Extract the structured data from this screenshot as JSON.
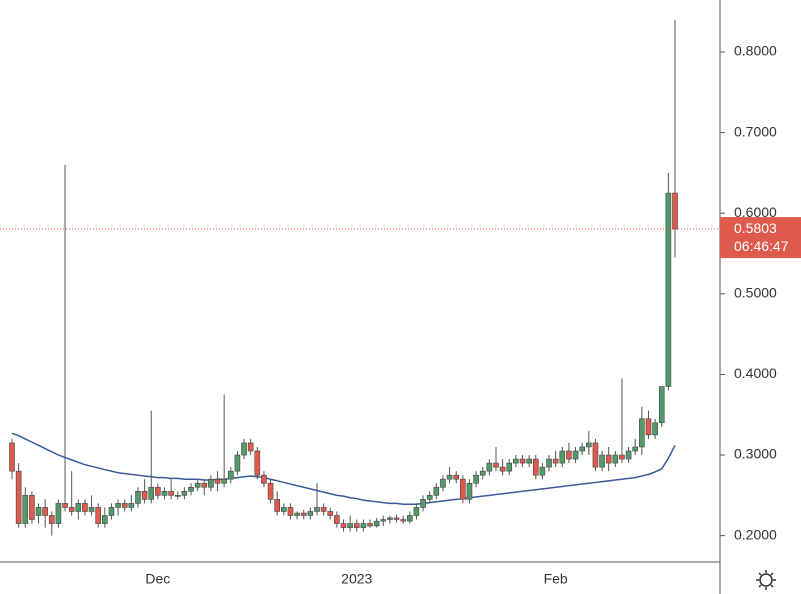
{
  "chart_data": {
    "type": "candlestick",
    "ylim": [
      0.1673,
      0.8645
    ],
    "yticks": [
      {
        "value": 0.2,
        "label": "0.2000"
      },
      {
        "value": 0.3,
        "label": "0.3000"
      },
      {
        "value": 0.4,
        "label": "0.4000"
      },
      {
        "value": 0.5,
        "label": "0.5000"
      },
      {
        "value": 0.6,
        "label": "0.6000"
      },
      {
        "value": 0.7,
        "label": "0.7000"
      },
      {
        "value": 0.8,
        "label": "0.8000"
      }
    ],
    "up_color": "#53996a",
    "down_color": "#de5a4c",
    "categories": [
      null,
      null,
      null,
      null,
      null,
      null,
      null,
      null,
      null,
      null,
      null,
      null,
      null,
      null,
      null,
      null,
      null,
      null,
      null,
      null,
      null,
      null,
      "Dec",
      null,
      null,
      null,
      null,
      null,
      null,
      null,
      null,
      null,
      null,
      null,
      null,
      null,
      null,
      null,
      null,
      null,
      null,
      null,
      null,
      null,
      null,
      null,
      null,
      null,
      null,
      null,
      null,
      null,
      "2023",
      null,
      null,
      null,
      null,
      null,
      null,
      null,
      null,
      null,
      null,
      null,
      null,
      null,
      null,
      null,
      null,
      null,
      null,
      null,
      null,
      null,
      null,
      null,
      null,
      null,
      null,
      null,
      null,
      null,
      "Feb",
      null,
      null,
      null,
      null,
      null,
      null,
      null,
      null,
      null,
      null,
      null,
      null,
      null,
      null,
      null,
      null,
      null,
      null
    ],
    "candles": [
      [
        0.315,
        0.32,
        0.27,
        0.28
      ],
      [
        0.28,
        0.29,
        0.21,
        0.215
      ],
      [
        0.215,
        0.26,
        0.21,
        0.25
      ],
      [
        0.25,
        0.255,
        0.215,
        0.22
      ],
      [
        0.225,
        0.24,
        0.215,
        0.235
      ],
      [
        0.235,
        0.245,
        0.21,
        0.225
      ],
      [
        0.225,
        0.23,
        0.2,
        0.215
      ],
      [
        0.215,
        0.245,
        0.21,
        0.24
      ],
      [
        0.24,
        0.66,
        0.23,
        0.235
      ],
      [
        0.235,
        0.28,
        0.225,
        0.23
      ],
      [
        0.23,
        0.245,
        0.22,
        0.24
      ],
      [
        0.24,
        0.245,
        0.225,
        0.23
      ],
      [
        0.23,
        0.25,
        0.225,
        0.235
      ],
      [
        0.235,
        0.24,
        0.21,
        0.215
      ],
      [
        0.215,
        0.235,
        0.21,
        0.225
      ],
      [
        0.225,
        0.24,
        0.22,
        0.235
      ],
      [
        0.235,
        0.245,
        0.225,
        0.24
      ],
      [
        0.24,
        0.245,
        0.23,
        0.235
      ],
      [
        0.235,
        0.25,
        0.23,
        0.24
      ],
      [
        0.24,
        0.26,
        0.235,
        0.255
      ],
      [
        0.255,
        0.27,
        0.24,
        0.245
      ],
      [
        0.245,
        0.355,
        0.24,
        0.26
      ],
      [
        0.26,
        0.265,
        0.245,
        0.25
      ],
      [
        0.25,
        0.26,
        0.245,
        0.255
      ],
      [
        0.255,
        0.27,
        0.245,
        0.25
      ],
      [
        0.25,
        0.255,
        0.245,
        0.25
      ],
      [
        0.25,
        0.26,
        0.245,
        0.255
      ],
      [
        0.255,
        0.265,
        0.25,
        0.26
      ],
      [
        0.26,
        0.27,
        0.255,
        0.265
      ],
      [
        0.265,
        0.27,
        0.25,
        0.26
      ],
      [
        0.26,
        0.275,
        0.255,
        0.27
      ],
      [
        0.27,
        0.28,
        0.255,
        0.265
      ],
      [
        0.265,
        0.375,
        0.26,
        0.27
      ],
      [
        0.27,
        0.285,
        0.265,
        0.28
      ],
      [
        0.28,
        0.305,
        0.275,
        0.3
      ],
      [
        0.3,
        0.32,
        0.295,
        0.315
      ],
      [
        0.315,
        0.32,
        0.3,
        0.305
      ],
      [
        0.305,
        0.31,
        0.27,
        0.275
      ],
      [
        0.275,
        0.28,
        0.26,
        0.265
      ],
      [
        0.265,
        0.27,
        0.24,
        0.245
      ],
      [
        0.245,
        0.255,
        0.225,
        0.23
      ],
      [
        0.23,
        0.24,
        0.225,
        0.235
      ],
      [
        0.235,
        0.24,
        0.22,
        0.225
      ],
      [
        0.225,
        0.23,
        0.22,
        0.228
      ],
      [
        0.228,
        0.232,
        0.22,
        0.225
      ],
      [
        0.225,
        0.235,
        0.22,
        0.23
      ],
      [
        0.23,
        0.265,
        0.225,
        0.235
      ],
      [
        0.235,
        0.24,
        0.225,
        0.23
      ],
      [
        0.23,
        0.235,
        0.22,
        0.225
      ],
      [
        0.225,
        0.23,
        0.21,
        0.215
      ],
      [
        0.215,
        0.22,
        0.205,
        0.21
      ],
      [
        0.21,
        0.225,
        0.205,
        0.215
      ],
      [
        0.215,
        0.22,
        0.205,
        0.21
      ],
      [
        0.21,
        0.22,
        0.205,
        0.215
      ],
      [
        0.215,
        0.22,
        0.21,
        0.212
      ],
      [
        0.212,
        0.222,
        0.21,
        0.218
      ],
      [
        0.218,
        0.225,
        0.212,
        0.22
      ],
      [
        0.22,
        0.225,
        0.215,
        0.222
      ],
      [
        0.222,
        0.226,
        0.216,
        0.22
      ],
      [
        0.22,
        0.225,
        0.215,
        0.218
      ],
      [
        0.218,
        0.23,
        0.215,
        0.225
      ],
      [
        0.225,
        0.24,
        0.22,
        0.235
      ],
      [
        0.235,
        0.25,
        0.23,
        0.245
      ],
      [
        0.245,
        0.255,
        0.24,
        0.25
      ],
      [
        0.25,
        0.265,
        0.245,
        0.26
      ],
      [
        0.26,
        0.275,
        0.255,
        0.27
      ],
      [
        0.27,
        0.285,
        0.265,
        0.275
      ],
      [
        0.275,
        0.28,
        0.265,
        0.27
      ],
      [
        0.27,
        0.275,
        0.24,
        0.245
      ],
      [
        0.245,
        0.27,
        0.24,
        0.265
      ],
      [
        0.265,
        0.28,
        0.26,
        0.275
      ],
      [
        0.275,
        0.285,
        0.27,
        0.28
      ],
      [
        0.28,
        0.295,
        0.275,
        0.29
      ],
      [
        0.29,
        0.31,
        0.28,
        0.285
      ],
      [
        0.285,
        0.295,
        0.275,
        0.28
      ],
      [
        0.28,
        0.295,
        0.275,
        0.29
      ],
      [
        0.29,
        0.3,
        0.285,
        0.295
      ],
      [
        0.295,
        0.3,
        0.285,
        0.29
      ],
      [
        0.29,
        0.3,
        0.285,
        0.295
      ],
      [
        0.295,
        0.3,
        0.27,
        0.275
      ],
      [
        0.275,
        0.29,
        0.27,
        0.285
      ],
      [
        0.285,
        0.3,
        0.28,
        0.295
      ],
      [
        0.295,
        0.305,
        0.285,
        0.29
      ],
      [
        0.29,
        0.31,
        0.285,
        0.305
      ],
      [
        0.305,
        0.315,
        0.29,
        0.295
      ],
      [
        0.295,
        0.31,
        0.29,
        0.305
      ],
      [
        0.305,
        0.315,
        0.3,
        0.31
      ],
      [
        0.31,
        0.33,
        0.3,
        0.315
      ],
      [
        0.315,
        0.32,
        0.28,
        0.285
      ],
      [
        0.285,
        0.305,
        0.28,
        0.3
      ],
      [
        0.3,
        0.31,
        0.28,
        0.29
      ],
      [
        0.29,
        0.305,
        0.285,
        0.3
      ],
      [
        0.3,
        0.395,
        0.29,
        0.295
      ],
      [
        0.295,
        0.31,
        0.29,
        0.305
      ],
      [
        0.305,
        0.32,
        0.3,
        0.31
      ],
      [
        0.31,
        0.36,
        0.3,
        0.345
      ],
      [
        0.345,
        0.355,
        0.32,
        0.325
      ],
      [
        0.325,
        0.345,
        0.32,
        0.34
      ],
      [
        0.34,
        0.385,
        0.335,
        0.385
      ],
      [
        0.385,
        0.65,
        0.38,
        0.625
      ],
      [
        0.625,
        0.84,
        0.545,
        0.5803
      ]
    ],
    "ma": {
      "color": "#3a5a9c",
      "values": [
        0.327,
        0.324,
        0.32,
        0.316,
        0.312,
        0.308,
        0.304,
        0.3,
        0.297,
        0.294,
        0.291,
        0.288,
        0.286,
        0.284,
        0.282,
        0.28,
        0.278,
        0.277,
        0.276,
        0.275,
        0.274,
        0.273,
        0.272,
        0.272,
        0.271,
        0.271,
        0.27,
        0.27,
        0.27,
        0.269,
        0.269,
        0.27,
        0.27,
        0.271,
        0.272,
        0.273,
        0.274,
        0.273,
        0.272,
        0.27,
        0.268,
        0.266,
        0.264,
        0.262,
        0.26,
        0.258,
        0.256,
        0.254,
        0.252,
        0.25,
        0.249,
        0.247,
        0.246,
        0.244,
        0.243,
        0.242,
        0.241,
        0.24,
        0.24,
        0.239,
        0.239,
        0.239,
        0.24,
        0.241,
        0.242,
        0.243,
        0.244,
        0.245,
        0.246,
        0.247,
        0.248,
        0.249,
        0.25,
        0.251,
        0.252,
        0.253,
        0.254,
        0.255,
        0.256,
        0.257,
        0.258,
        0.259,
        0.26,
        0.261,
        0.262,
        0.263,
        0.264,
        0.265,
        0.266,
        0.267,
        0.268,
        0.269,
        0.27,
        0.271,
        0.272,
        0.274,
        0.276,
        0.279,
        0.283,
        0.296,
        0.312
      ]
    },
    "last_price": 0.5803,
    "countdown": "06:46:47",
    "tag_color": "#de5a4c"
  }
}
